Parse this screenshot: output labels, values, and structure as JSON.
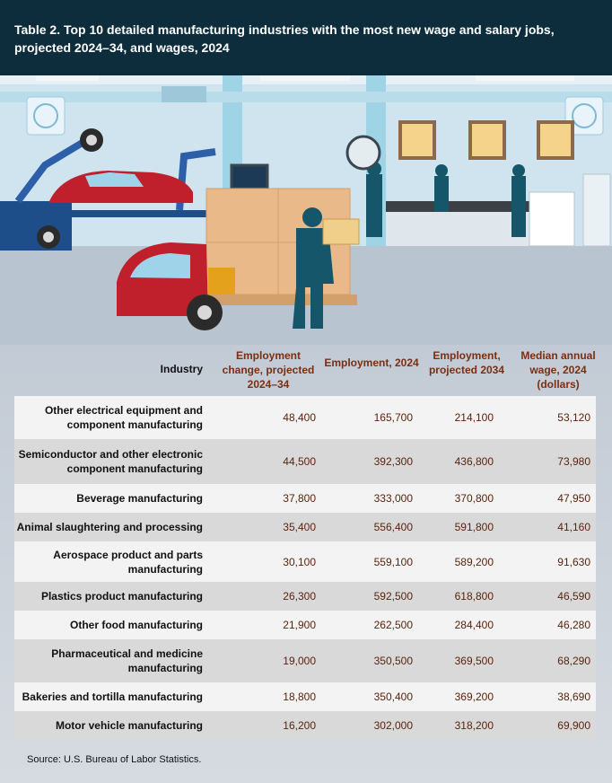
{
  "chart_data": {
    "type": "table",
    "title": "Table 2. Top 10 detailed manufacturing industries with the most new wage and salary jobs, projected 2024–34, and wages, 2024",
    "columns": [
      "Industry",
      "Employment change, projected 2024–34",
      "Employment, 2024",
      "Employment, projected 2034",
      "Median annual wage, 2024 (dollars)"
    ],
    "rows": [
      {
        "industry": "Other electrical equipment and component manufacturing",
        "change": "48,400",
        "emp_2024": "165,700",
        "emp_2034": "214,100",
        "wage": "53,120"
      },
      {
        "industry": "Semiconductor and other electronic component manufacturing",
        "change": "44,500",
        "emp_2024": "392,300",
        "emp_2034": "436,800",
        "wage": "73,980"
      },
      {
        "industry": "Beverage manufacturing",
        "change": "37,800",
        "emp_2024": "333,000",
        "emp_2034": "370,800",
        "wage": "47,950"
      },
      {
        "industry": "Animal slaughtering and processing",
        "change": "35,400",
        "emp_2024": "556,400",
        "emp_2034": "591,800",
        "wage": "41,160"
      },
      {
        "industry": "Aerospace product and parts manufacturing",
        "change": "30,100",
        "emp_2024": "559,100",
        "emp_2034": "589,200",
        "wage": "91,630"
      },
      {
        "industry": "Plastics product manufacturing",
        "change": "26,300",
        "emp_2024": "592,500",
        "emp_2034": "618,800",
        "wage": "46,590"
      },
      {
        "industry": "Other food manufacturing",
        "change": "21,900",
        "emp_2024": "262,500",
        "emp_2034": "284,400",
        "wage": "46,280"
      },
      {
        "industry": "Pharmaceutical and medicine manufacturing",
        "change": "19,000",
        "emp_2024": "350,500",
        "emp_2034": "369,500",
        "wage": "68,290"
      },
      {
        "industry": "Bakeries and tortilla manufacturing",
        "change": "18,800",
        "emp_2024": "350,400",
        "emp_2034": "369,200",
        "wage": "38,690"
      },
      {
        "industry": "Motor vehicle manufacturing",
        "change": "16,200",
        "emp_2024": "302,000",
        "emp_2034": "318,200",
        "wage": "69,900"
      }
    ],
    "source": "Source: U.S. Bureau of Labor Statistics."
  },
  "colors": {
    "header_bg": "#0e2d3c",
    "value_text": "#5a230c",
    "column_header_text": "#7a2e12",
    "row_light": "#f3f3f3",
    "row_dark": "#d9d9d9"
  },
  "illustration": "factory-scene"
}
